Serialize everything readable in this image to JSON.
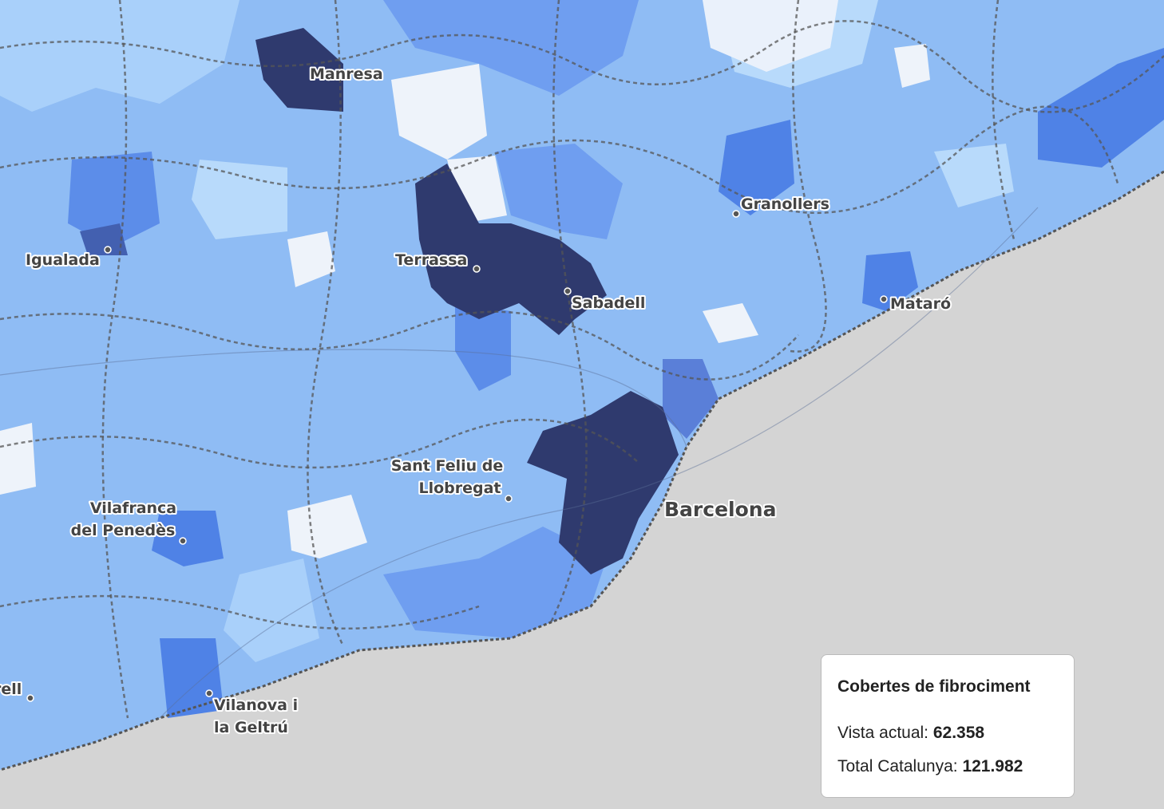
{
  "map": {
    "cities": [
      {
        "lines": [
          "Manresa"
        ]
      },
      {
        "lines": [
          "Igualada"
        ]
      },
      {
        "lines": [
          "Terrassa"
        ]
      },
      {
        "lines": [
          "Sabadell"
        ]
      },
      {
        "lines": [
          "Granollers"
        ]
      },
      {
        "lines": [
          "Mataró"
        ]
      },
      {
        "lines": [
          "Sant Feliu de",
          "Llobregat"
        ]
      },
      {
        "lines": [
          "Barcelona"
        ]
      },
      {
        "lines": [
          "Vilafranca",
          "del Penedès"
        ]
      },
      {
        "lines": [
          "Vilanova i",
          "la Geltrú"
        ]
      },
      {
        "lines": [
          "rell"
        ]
      }
    ]
  },
  "legend": {
    "title": "Cobertes de fibrociment",
    "rows": [
      {
        "label": "Vista actual:",
        "value": "62.358"
      },
      {
        "label": "Total Catalunya:",
        "value": "121.982"
      }
    ]
  }
}
